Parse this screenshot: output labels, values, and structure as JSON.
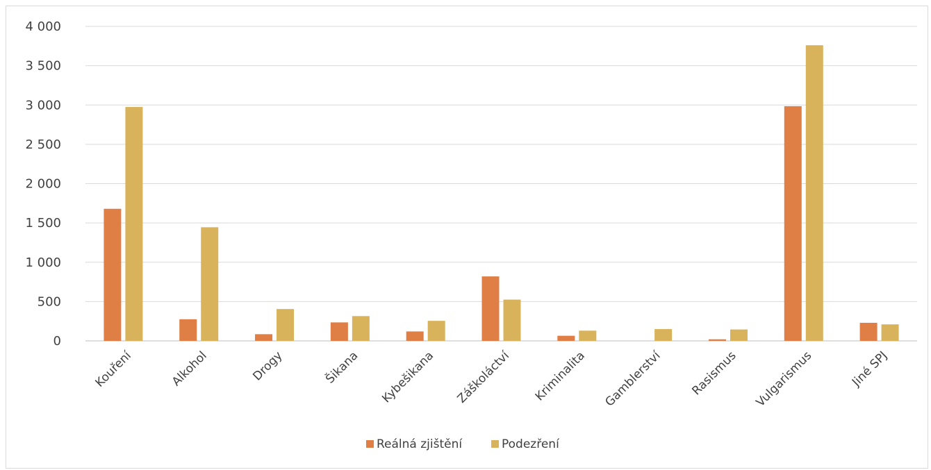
{
  "chart_data": {
    "type": "bar",
    "categories": [
      "Kouření",
      "Alkohol",
      "Drogy",
      "Šikana",
      "Kybešikana",
      "Záškoláctví",
      "Kriminalita",
      "Gamblerství",
      "Rasismus",
      "Vulgarismus",
      "Jiné SPJ"
    ],
    "series": [
      {
        "name": "Reálná zjištění",
        "color": "#E07F45",
        "values": [
          1680,
          275,
          85,
          235,
          120,
          820,
          65,
          0,
          20,
          2985,
          230
        ]
      },
      {
        "name": "Podezření",
        "color": "#D8B35C",
        "values": [
          2975,
          1445,
          405,
          315,
          255,
          525,
          130,
          150,
          145,
          3760,
          210
        ]
      }
    ],
    "ylim": [
      0,
      4000
    ],
    "yticks": [
      0,
      500,
      1000,
      1500,
      2000,
      2500,
      3000,
      3500,
      4000
    ],
    "ytick_labels": [
      "0",
      "500",
      "1 000",
      "1 500",
      "2 000",
      "2 500",
      "3 000",
      "3 500",
      "4 000"
    ],
    "grid": true,
    "legend_position": "bottom",
    "title": "",
    "xlabel": "",
    "ylabel": ""
  }
}
